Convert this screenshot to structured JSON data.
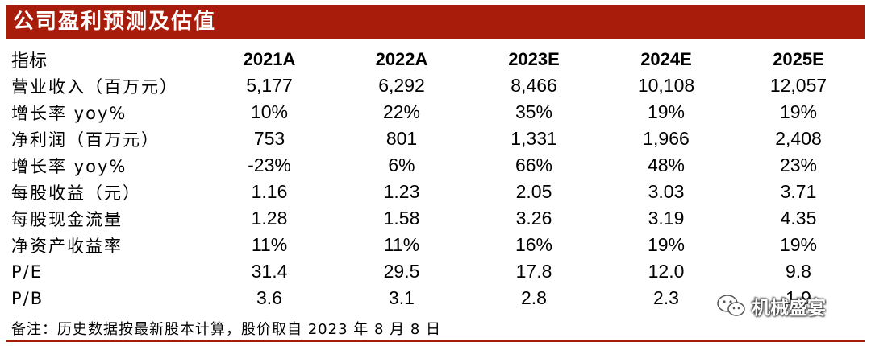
{
  "title": "公司盈利预测及估值",
  "table": {
    "columns": [
      "指标",
      "2021A",
      "2022A",
      "2023E",
      "2024E",
      "2025E"
    ],
    "rows": [
      {
        "label": "营业收入（百万元）",
        "values": [
          "5,177",
          "6,292",
          "8,466",
          "10,108",
          "12,057"
        ]
      },
      {
        "label": "增长率 yoy%",
        "values": [
          "10%",
          "22%",
          "35%",
          "19%",
          "19%"
        ]
      },
      {
        "label": "净利润（百万元）",
        "values": [
          "753",
          "801",
          "1,331",
          "1,966",
          "2,408"
        ]
      },
      {
        "label": "增长率 yoy%",
        "values": [
          "-23%",
          "6%",
          "66%",
          "48%",
          "23%"
        ]
      },
      {
        "label": "每股收益（元）",
        "values": [
          "1.16",
          "1.23",
          "2.05",
          "3.03",
          "3.71"
        ]
      },
      {
        "label": "每股现金流量",
        "values": [
          "1.28",
          "1.58",
          "3.26",
          "3.19",
          "4.35"
        ]
      },
      {
        "label": "净资产收益率",
        "values": [
          "11%",
          "11%",
          "16%",
          "19%",
          "19%"
        ]
      },
      {
        "label": "P/E",
        "values": [
          "31.4",
          "29.5",
          "17.8",
          "12.0",
          "9.8"
        ]
      },
      {
        "label": "P/B",
        "values": [
          "3.6",
          "3.1",
          "2.8",
          "2.3",
          "1.9"
        ]
      }
    ]
  },
  "note": "备注：历史数据按最新股本计算，股价取自 2023 年 8 月 8 日",
  "watermark": {
    "text": "机械盛宴",
    "icon": "wechat-icon"
  },
  "colors": {
    "accent": "#a81c0c"
  }
}
